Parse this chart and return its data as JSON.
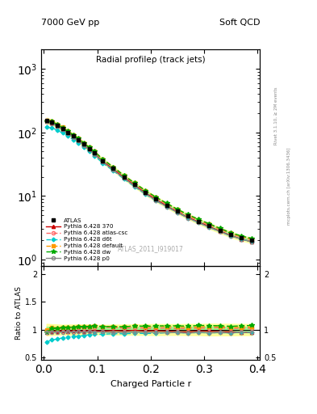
{
  "title_center": "Radial profileρ (track jets)",
  "top_left_label": "7000 GeV pp",
  "top_right_label": "Soft QCD",
  "right_label_top": "Rivet 3.1.10, ≥ 2M events",
  "right_label_bottom": "mcplots.cern.ch [arXiv:1306.3436]",
  "watermark": "ATLAS_2011_I919017",
  "xlabel": "Charged Particle r",
  "ylabel_bottom": "Ratio to ATLAS",
  "x_data": [
    0.005,
    0.015,
    0.025,
    0.035,
    0.045,
    0.055,
    0.065,
    0.075,
    0.085,
    0.095,
    0.11,
    0.13,
    0.15,
    0.17,
    0.19,
    0.21,
    0.23,
    0.25,
    0.27,
    0.29,
    0.31,
    0.33,
    0.35,
    0.37,
    0.39
  ],
  "atlas_y": [
    155,
    145,
    130,
    115,
    100,
    88,
    76,
    65,
    55,
    47,
    36,
    27,
    20,
    15,
    11.5,
    9.0,
    7.2,
    5.8,
    4.8,
    4.0,
    3.4,
    2.9,
    2.5,
    2.2,
    2.0
  ],
  "atlas_yerr": [
    8,
    7,
    6,
    5,
    4.5,
    4,
    3.5,
    3,
    2.5,
    2,
    1.5,
    1.2,
    0.9,
    0.7,
    0.55,
    0.45,
    0.35,
    0.28,
    0.24,
    0.2,
    0.18,
    0.15,
    0.13,
    0.11,
    0.1
  ],
  "pythia370_y": [
    148,
    140,
    126,
    112,
    97,
    86,
    74,
    63,
    54,
    46,
    35,
    26.5,
    19.5,
    14.8,
    11.2,
    8.8,
    7.0,
    5.6,
    4.6,
    3.9,
    3.3,
    2.8,
    2.4,
    2.1,
    1.9
  ],
  "pythia_atlas_csc_y": [
    152,
    148,
    132,
    118,
    103,
    91,
    79,
    67,
    57,
    49,
    37.5,
    28,
    20.5,
    15.5,
    11.8,
    9.2,
    7.4,
    5.9,
    4.9,
    4.1,
    3.5,
    3.0,
    2.55,
    2.25,
    2.05
  ],
  "pythia_d6t_y": [
    120,
    118,
    108,
    98,
    87,
    77,
    67,
    58,
    50,
    43,
    33,
    25,
    18.5,
    14,
    10.7,
    8.4,
    6.8,
    5.5,
    4.5,
    3.8,
    3.2,
    2.75,
    2.35,
    2.1,
    1.9
  ],
  "pythia_default_y": [
    155,
    150,
    134,
    120,
    104,
    92,
    80,
    68,
    58,
    50,
    38,
    28.5,
    21,
    16,
    12.1,
    9.5,
    7.6,
    6.1,
    5.0,
    4.2,
    3.6,
    3.05,
    2.6,
    2.3,
    2.1
  ],
  "pythia_dw_y": [
    148,
    148,
    133,
    119,
    104,
    92,
    80,
    68,
    58,
    50,
    38,
    28.5,
    21,
    16,
    12.2,
    9.6,
    7.7,
    6.2,
    5.1,
    4.3,
    3.65,
    3.1,
    2.65,
    2.35,
    2.15
  ],
  "pythia_p0_y": [
    148,
    138,
    124,
    110,
    96,
    84,
    73,
    62,
    53,
    45,
    34.5,
    25.5,
    19,
    14.3,
    10.9,
    8.5,
    6.8,
    5.5,
    4.5,
    3.8,
    3.2,
    2.75,
    2.35,
    2.1,
    1.9
  ],
  "color_atlas": "#000000",
  "color_370": "#cc0000",
  "color_atlas_csc": "#ff6666",
  "color_d6t": "#00cccc",
  "color_default": "#ff9900",
  "color_dw": "#00aa00",
  "color_p0": "#888888",
  "band_color_yellow": "#ffff88",
  "band_color_green": "#88ff88"
}
